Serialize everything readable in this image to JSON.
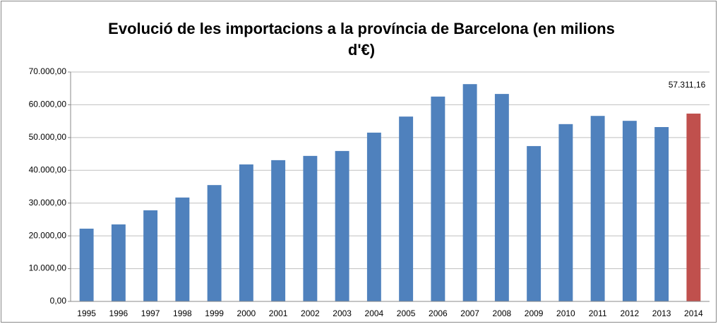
{
  "chart_data": {
    "type": "bar",
    "title": "Evolució de les importacions a la província de Barcelona (en milions d'€)",
    "categories": [
      "1995",
      "1996",
      "1997",
      "1998",
      "1999",
      "2000",
      "2001",
      "2002",
      "2003",
      "2004",
      "2005",
      "2006",
      "2007",
      "2008",
      "2009",
      "2010",
      "2011",
      "2012",
      "2013",
      "2014"
    ],
    "values": [
      22200,
      23500,
      27800,
      31700,
      35500,
      41800,
      43100,
      44400,
      45900,
      51500,
      56400,
      62500,
      66300,
      63300,
      47400,
      54100,
      56600,
      55100,
      53200,
      57311.16
    ],
    "value_labels": [
      null,
      null,
      null,
      null,
      null,
      null,
      null,
      null,
      null,
      null,
      null,
      null,
      null,
      null,
      null,
      null,
      null,
      null,
      null,
      "57.311,16"
    ],
    "colors": [
      "#4f81bd",
      "#4f81bd",
      "#4f81bd",
      "#4f81bd",
      "#4f81bd",
      "#4f81bd",
      "#4f81bd",
      "#4f81bd",
      "#4f81bd",
      "#4f81bd",
      "#4f81bd",
      "#4f81bd",
      "#4f81bd",
      "#4f81bd",
      "#4f81bd",
      "#4f81bd",
      "#4f81bd",
      "#4f81bd",
      "#4f81bd",
      "#c0504d"
    ],
    "ylim": [
      0,
      70000
    ],
    "yticks": [
      {
        "value": 0,
        "label": "0,00"
      },
      {
        "value": 10000,
        "label": "10.000,00"
      },
      {
        "value": 20000,
        "label": "20.000,00"
      },
      {
        "value": 30000,
        "label": "30.000,00"
      },
      {
        "value": 40000,
        "label": "40.000,00"
      },
      {
        "value": 50000,
        "label": "50.000,00"
      },
      {
        "value": 60000,
        "label": "60.000,00"
      },
      {
        "value": 70000,
        "label": "70.000,00"
      }
    ],
    "grid": true
  }
}
